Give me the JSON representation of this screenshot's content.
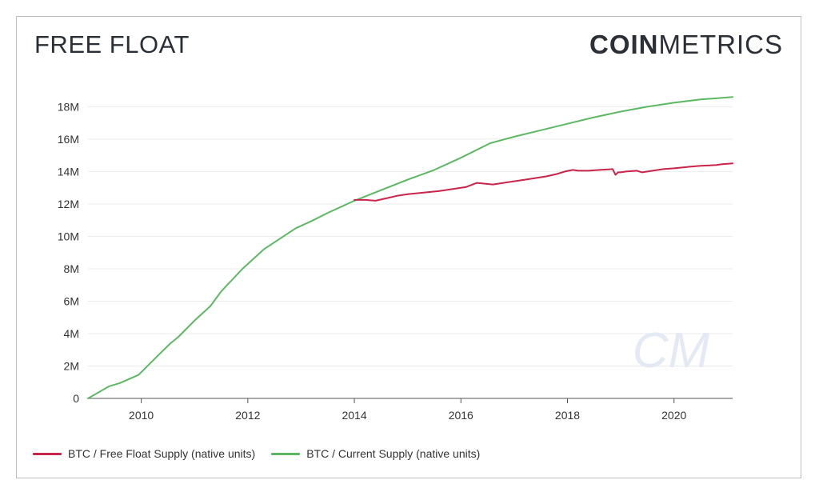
{
  "header": {
    "title": "FREE FLOAT",
    "brand_bold": "COIN",
    "brand_light": "METRICS"
  },
  "watermark": "CM",
  "colors": {
    "free_float": "#c9244a",
    "current_supply": "#5cb862",
    "grid": "#ebebeb",
    "axis": "#555555"
  },
  "chart_data": {
    "type": "line",
    "title": "FREE FLOAT",
    "xlabel": "",
    "ylabel": "",
    "xlim": [
      2009.0,
      2021.1
    ],
    "ylim": [
      0,
      18000000
    ],
    "x_ticks": [
      2010,
      2012,
      2014,
      2016,
      2018,
      2020
    ],
    "x_tick_labels": [
      "2010",
      "2012",
      "2014",
      "2016",
      "2018",
      "2020"
    ],
    "y_ticks": [
      0,
      2000000,
      4000000,
      6000000,
      8000000,
      10000000,
      12000000,
      14000000,
      16000000,
      18000000
    ],
    "y_tick_labels": [
      "0",
      "2M",
      "4M",
      "6M",
      "8M",
      "10M",
      "12M",
      "14M",
      "16M",
      "18M"
    ],
    "grid": true,
    "legend_position": "bottom-left",
    "series": [
      {
        "name": "BTC / Free Float Supply (native units)",
        "color": "#c9244a",
        "x": [
          2014.0,
          2014.2,
          2014.4,
          2014.6,
          2014.8,
          2015.0,
          2015.3,
          2015.6,
          2015.7,
          2015.9,
          2016.1,
          2016.3,
          2016.45,
          2016.6,
          2016.8,
          2017.0,
          2017.3,
          2017.6,
          2017.8,
          2017.95,
          2018.1,
          2018.2,
          2018.4,
          2018.6,
          2018.85,
          2018.9,
          2018.95,
          2019.0,
          2019.1,
          2019.3,
          2019.4,
          2019.6,
          2019.8,
          2020.0,
          2020.3,
          2020.5,
          2020.8,
          2020.9,
          2021.1
        ],
        "y": [
          12250000,
          12250000,
          12200000,
          12350000,
          12500000,
          12600000,
          12700000,
          12800000,
          12850000,
          12950000,
          13050000,
          13300000,
          13250000,
          13200000,
          13300000,
          13400000,
          13550000,
          13700000,
          13850000,
          14000000,
          14100000,
          14050000,
          14050000,
          14100000,
          14150000,
          13800000,
          13950000,
          13950000,
          14000000,
          14050000,
          13950000,
          14050000,
          14150000,
          14200000,
          14300000,
          14350000,
          14400000,
          14450000,
          14500000
        ]
      },
      {
        "name": "BTC / Current Supply (native units)",
        "color": "#5cb862",
        "x": [
          2009.0,
          2009.4,
          2009.6,
          2009.95,
          2010.3,
          2010.55,
          2010.7,
          2011.0,
          2011.3,
          2011.5,
          2011.9,
          2012.3,
          2012.9,
          2013.2,
          2013.5,
          2014.0,
          2014.5,
          2015.0,
          2015.5,
          2016.0,
          2016.55,
          2017.0,
          2017.5,
          2018.0,
          2018.5,
          2019.0,
          2019.5,
          2020.0,
          2020.5,
          2021.1
        ],
        "y": [
          0,
          750000,
          950000,
          1450000,
          2600000,
          3400000,
          3800000,
          4800000,
          5700000,
          6600000,
          8000000,
          9200000,
          10500000,
          10950000,
          11450000,
          12200000,
          12850000,
          13500000,
          14100000,
          14850000,
          15750000,
          16150000,
          16550000,
          16950000,
          17350000,
          17700000,
          18000000,
          18250000,
          18450000,
          18600000
        ]
      }
    ]
  }
}
